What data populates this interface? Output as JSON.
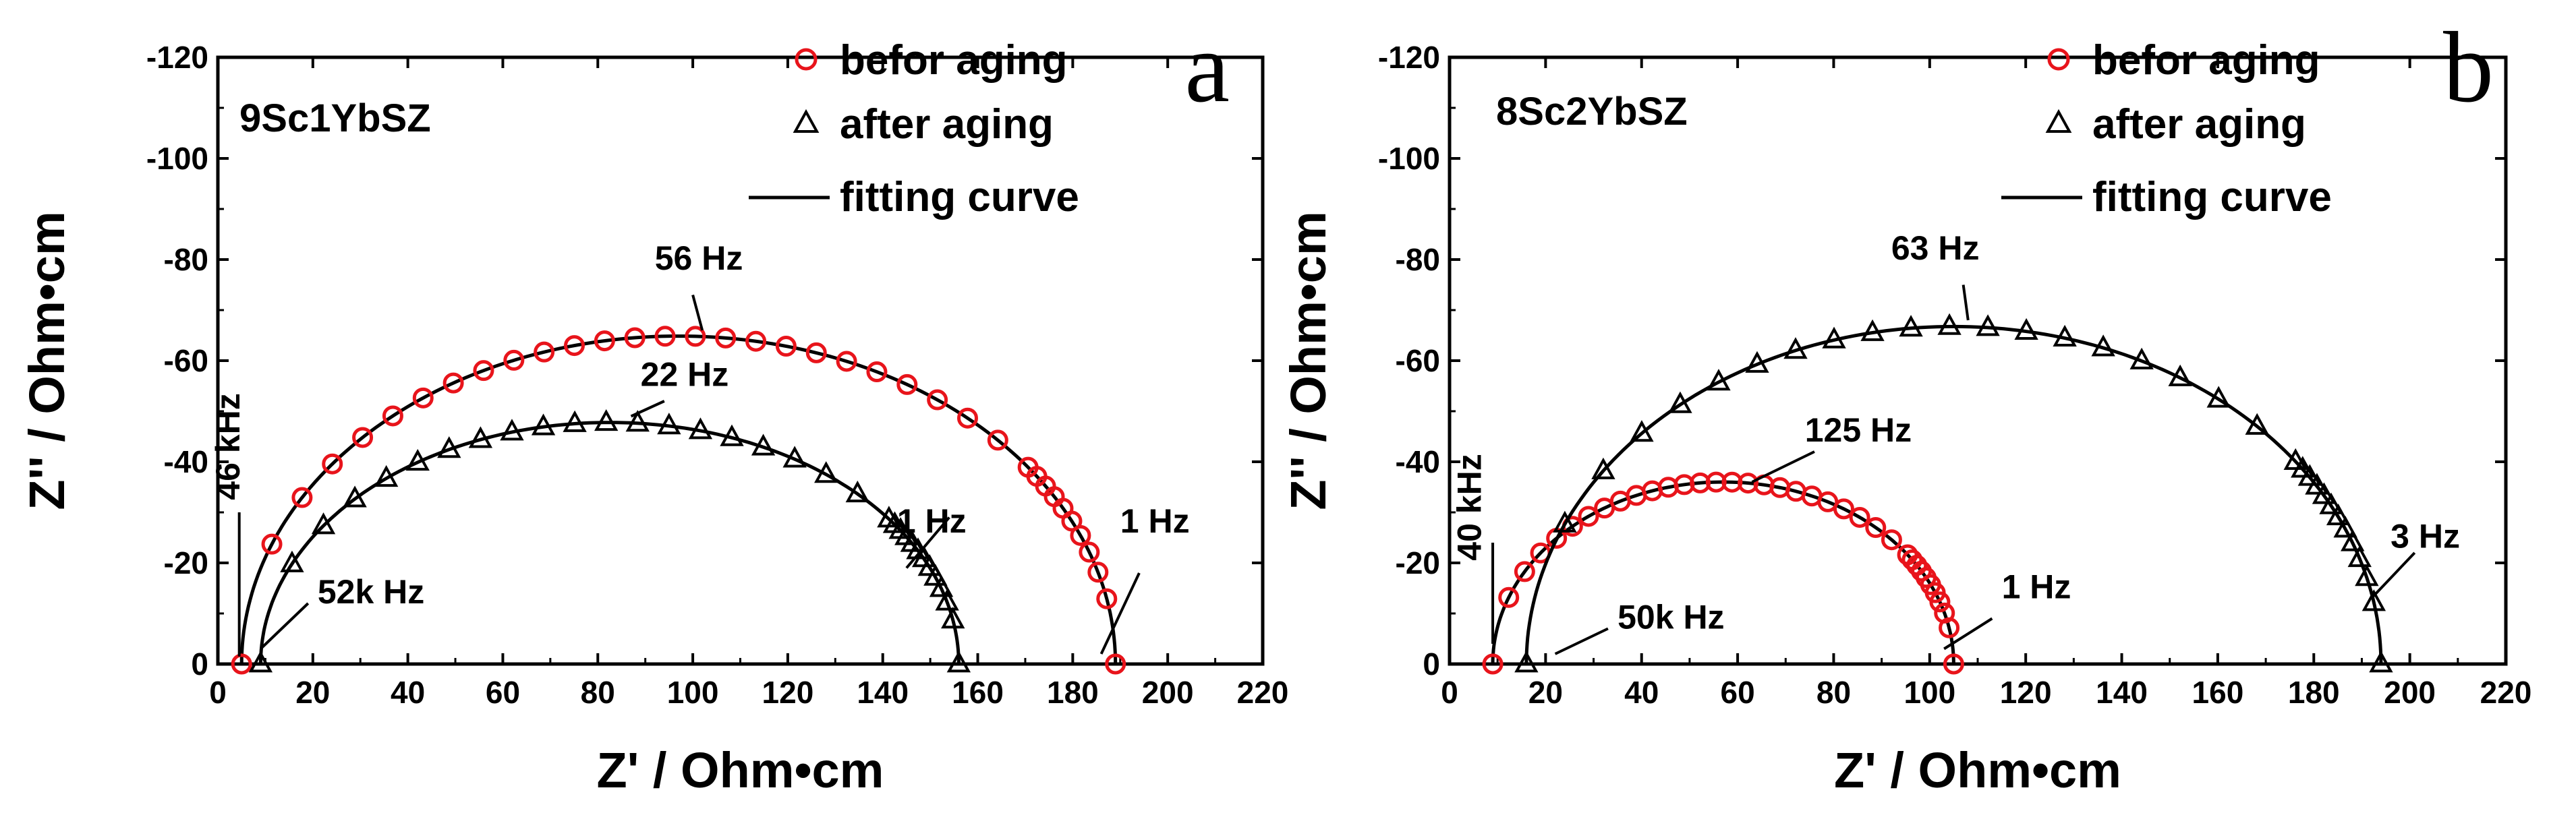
{
  "colors": {
    "before": "#e8141b",
    "after": "#000000",
    "fit": "#000000",
    "axis": "#000000"
  },
  "chart_data": [
    {
      "type": "scatter",
      "panel": "a",
      "sample": "9Sc1YbSZ",
      "xlabel": "Z' / Ohm•cm",
      "ylabel": "Z'' / Ohm•cm",
      "xlim": [
        0,
        220
      ],
      "ylim": [
        0,
        -120
      ],
      "x_ticks": [
        0,
        20,
        40,
        60,
        80,
        100,
        120,
        140,
        160,
        180,
        200,
        220
      ],
      "y_ticks": [
        0,
        -20,
        -40,
        -60,
        -80,
        -100,
        -120
      ],
      "x_tick_labels": [
        "0",
        "20",
        "40",
        "60",
        "80",
        "100",
        "120",
        "140",
        "160",
        "180",
        "200",
        "220"
      ],
      "y_tick_labels": [
        "0",
        "-20",
        "-40",
        "-60",
        "-80",
        "-100",
        "-120"
      ],
      "legend": {
        "before": "befor aging",
        "after": "after aging",
        "fit": "fitting curve"
      },
      "series": [
        {
          "name": "befor aging",
          "marker": "circle",
          "center": 97,
          "radius": 92,
          "depression": 0.705,
          "x_low": 5,
          "x_high": 189
        },
        {
          "name": "after aging",
          "marker": "triangle",
          "center": 82.5,
          "radius": 73.5,
          "depression": 0.65,
          "x_low": 9,
          "x_high": 156
        }
      ],
      "annotations": [
        {
          "text": "56 Hz",
          "tx": 92,
          "ty": -78,
          "x1": 100,
          "y1": -73,
          "x2": 102,
          "y2": -66
        },
        {
          "text": "22 Hz",
          "tx": 89,
          "ty": -55,
          "x1": 94,
          "y1": -52,
          "x2": 87,
          "y2": -49
        },
        {
          "text": "46 kHz",
          "tx": 2,
          "ty": -43,
          "x1": 4.5,
          "y1": -30,
          "x2": 4.5,
          "y2": -1.5,
          "vertical": true
        },
        {
          "text": "52k Hz",
          "tx": 21,
          "ty": -12,
          "x1": 19,
          "y1": -12,
          "x2": 9,
          "y2": -3
        },
        {
          "text": "1 Hz",
          "tx": 143,
          "ty": -26,
          "x1": 154,
          "y1": -29,
          "x2": 145,
          "y2": -19
        },
        {
          "text": "1 Hz",
          "tx": 190,
          "ty": -26,
          "x1": 194,
          "y1": -18,
          "x2": 186,
          "y2": -2
        }
      ]
    },
    {
      "type": "scatter",
      "panel": "b",
      "sample": "8Sc2YbSZ",
      "xlabel": "Z' / Ohm•cm",
      "ylabel": "Z'' / Ohm•cm",
      "xlim": [
        0,
        220
      ],
      "ylim": [
        0,
        -120
      ],
      "x_ticks": [
        0,
        20,
        40,
        60,
        80,
        100,
        120,
        140,
        160,
        180,
        200,
        220
      ],
      "y_ticks": [
        0,
        -20,
        -40,
        -60,
        -80,
        -100,
        -120
      ],
      "x_tick_labels": [
        "0",
        "20",
        "40",
        "60",
        "80",
        "100",
        "120",
        "140",
        "160",
        "180",
        "200",
        "220"
      ],
      "y_tick_labels": [
        "0",
        "-20",
        "-40",
        "-60",
        "-80",
        "-100",
        "-120"
      ],
      "legend": {
        "before": "befor aging",
        "after": "after aging",
        "fit": "fitting curve"
      },
      "series": [
        {
          "name": "befor aging",
          "marker": "circle",
          "center": 57,
          "radius": 48,
          "depression": 0.75,
          "x_low": 9,
          "x_high": 105
        },
        {
          "name": "after aging",
          "marker": "triangle",
          "center": 105,
          "radius": 89,
          "depression": 0.75,
          "x_low": 16,
          "x_high": 194
        }
      ],
      "annotations": [
        {
          "text": "63 Hz",
          "tx": 92,
          "ty": -80,
          "x1": 107,
          "y1": -75,
          "x2": 108,
          "y2": -68
        },
        {
          "text": "125 Hz",
          "tx": 74,
          "ty": -44,
          "x1": 76,
          "y1": -42,
          "x2": 63,
          "y2": -36
        },
        {
          "text": "40 kHz",
          "tx": 4,
          "ty": -31,
          "x1": 9,
          "y1": -24,
          "x2": 9,
          "y2": -4,
          "vertical": true
        },
        {
          "text": "50k Hz",
          "tx": 35,
          "ty": -7,
          "x1": 33,
          "y1": -7,
          "x2": 22,
          "y2": -2
        },
        {
          "text": "1 Hz",
          "tx": 115,
          "ty": -13,
          "x1": 113,
          "y1": -9,
          "x2": 103,
          "y2": -3
        },
        {
          "text": "3 Hz",
          "tx": 196,
          "ty": -23,
          "x1": 201,
          "y1": -22,
          "x2": 192,
          "y2": -13
        }
      ]
    }
  ]
}
